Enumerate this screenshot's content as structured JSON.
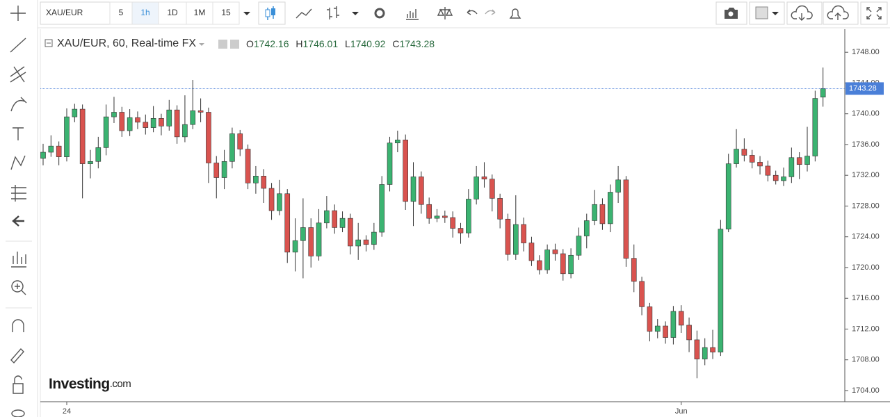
{
  "toolbar": {
    "symbol": "XAU/EUR",
    "intervals": [
      "5",
      "1h",
      "1D",
      "1M",
      "15"
    ],
    "active_interval": 1
  },
  "chart_data": {
    "type": "candlestick",
    "legend_title": "XAU/EUR, 60, Real-time FX",
    "ohlc_labels": [
      "O",
      "H",
      "L",
      "C"
    ],
    "watermark": "Investing",
    "watermark_suffix": ".com",
    "up_color": "#3bb371",
    "down_color": "#d9534f",
    "last_price_color": "#4a7fd8",
    "categories": [
      null,
      null,
      null,
      "24",
      null,
      null,
      null,
      null,
      null,
      null,
      null,
      null,
      null,
      null,
      null,
      null,
      null,
      null,
      null,
      null,
      null,
      null,
      null,
      null,
      null,
      null,
      null,
      null,
      null,
      null,
      null,
      null,
      null,
      null,
      null,
      null,
      null,
      null,
      null,
      null,
      null,
      null,
      null,
      null,
      null,
      null,
      null,
      null,
      null,
      null,
      null,
      null,
      null,
      null,
      null,
      null,
      null,
      null,
      null,
      null,
      null,
      null,
      null,
      null,
      null,
      null,
      null,
      null,
      null,
      null,
      null,
      null,
      null,
      null,
      null,
      null,
      null,
      null,
      null,
      null,
      null,
      "Jun",
      null,
      null,
      null,
      null,
      null,
      null,
      null,
      null,
      null,
      null,
      null,
      null,
      null,
      null,
      null,
      null,
      null,
      null
    ],
    "open": [
      1734.2,
      1735.0,
      1735.8,
      1734.4,
      1739.6,
      1740.6,
      1733.5,
      1733.8,
      1735.6,
      1739.6,
      1740.2,
      1737.8,
      1739.5,
      1738.9,
      1738.2,
      1739.4,
      1738.4,
      1740.5,
      1737.0,
      1738.6,
      1740.4,
      1740.2,
      1733.6,
      1731.7,
      1733.8,
      1737.4,
      1735.4,
      1731.0,
      1731.9,
      1730.3,
      1727.4,
      1729.6,
      1722.0,
      1723.5,
      1725.2,
      1721.5,
      1725.8,
      1727.4,
      1725.2,
      1726.4,
      1722.8,
      1723.6,
      1723.0,
      1724.6,
      1730.8,
      1736.2,
      1736.6,
      1728.6,
      1731.8,
      1728.2,
      1726.4,
      1726.7,
      1726.5,
      1725.1,
      1724.5,
      1728.9,
      1731.8,
      1731.5,
      1729.0,
      1726.3,
      1721.7,
      1725.6,
      1723.2,
      1720.9,
      1719.7,
      1722.3,
      1721.8,
      1719.2,
      1721.6,
      1724.1,
      1726.1,
      1728.2,
      1725.7,
      1729.8,
      1731.4,
      1721.2,
      1718.2,
      1714.9,
      1711.7,
      1712.4,
      1710.9,
      1714.3,
      1712.5,
      1710.6,
      1708.1,
      1709.6,
      1709.0,
      1725.0,
      1733.5,
      1735.4,
      1734.6,
      1733.7,
      1733.2,
      1732.0,
      1731.3,
      1731.8,
      1734.3,
      1733.4,
      1734.5,
      1742.16
    ],
    "high": [
      1736.1,
      1737.2,
      1736.4,
      1740.7,
      1741.3,
      1741.2,
      1735.3,
      1737.0,
      1741.2,
      1742.2,
      1740.9,
      1740.6,
      1740.3,
      1739.9,
      1741.0,
      1740.0,
      1741.8,
      1741.1,
      1742.4,
      1744.4,
      1742.0,
      1740.8,
      1734.5,
      1735.3,
      1738.2,
      1737.9,
      1736.0,
      1733.2,
      1732.8,
      1731.0,
      1731.4,
      1730.2,
      1726.4,
      1729.0,
      1726.4,
      1727.6,
      1729.3,
      1728.2,
      1727.3,
      1727.0,
      1725.8,
      1724.2,
      1725.8,
      1731.9,
      1737.0,
      1737.8,
      1737.3,
      1733.7,
      1732.5,
      1729.1,
      1727.6,
      1727.4,
      1727.3,
      1725.8,
      1730.2,
      1733.2,
      1733.7,
      1732.1,
      1729.6,
      1727.0,
      1729.4,
      1726.5,
      1724.0,
      1721.6,
      1723.0,
      1723.1,
      1722.4,
      1722.5,
      1725.2,
      1727.0,
      1730.1,
      1729.0,
      1730.8,
      1733.2,
      1731.9,
      1723.0,
      1718.8,
      1715.4,
      1713.3,
      1713.0,
      1715.0,
      1715.1,
      1713.5,
      1711.8,
      1710.8,
      1711.9,
      1726.2,
      1734.8,
      1738.0,
      1736.8,
      1735.3,
      1734.5,
      1733.9,
      1732.6,
      1733.0,
      1735.6,
      1735.0,
      1738.3,
      1743.0,
      1746.01
    ],
    "low": [
      1733.3,
      1734.4,
      1733.3,
      1733.8,
      1738.9,
      1729.0,
      1731.6,
      1732.9,
      1734.6,
      1738.8,
      1737.0,
      1737.1,
      1738.0,
      1737.3,
      1737.6,
      1737.2,
      1737.8,
      1736.1,
      1736.3,
      1738.0,
      1738.9,
      1731.0,
      1729.0,
      1730.2,
      1732.9,
      1734.5,
      1730.2,
      1729.6,
      1728.4,
      1726.2,
      1726.8,
      1720.6,
      1719.5,
      1718.6,
      1720.0,
      1720.9,
      1725.1,
      1724.4,
      1724.6,
      1721.7,
      1721.0,
      1722.1,
      1722.3,
      1724.0,
      1729.9,
      1735.0,
      1727.5,
      1725.4,
      1727.0,
      1725.7,
      1725.9,
      1725.8,
      1723.9,
      1723.1,
      1723.9,
      1728.2,
      1730.4,
      1727.3,
      1725.1,
      1720.9,
      1721.0,
      1722.1,
      1720.2,
      1719.1,
      1719.2,
      1720.9,
      1718.3,
      1718.6,
      1721.0,
      1722.5,
      1725.5,
      1724.9,
      1724.6,
      1728.4,
      1720.1,
      1716.8,
      1713.8,
      1710.4,
      1710.8,
      1710.1,
      1710.0,
      1711.5,
      1709.0,
      1705.6,
      1707.3,
      1708.1,
      1708.5,
      1724.6,
      1733.0,
      1733.8,
      1732.9,
      1732.1,
      1731.2,
      1730.8,
      1730.6,
      1731.0,
      1731.5,
      1732.5,
      1733.8,
      1740.92
    ],
    "close": [
      1735.0,
      1735.8,
      1734.4,
      1739.6,
      1740.6,
      1733.5,
      1733.8,
      1735.6,
      1739.6,
      1740.2,
      1737.8,
      1739.5,
      1738.9,
      1738.2,
      1739.4,
      1738.4,
      1740.5,
      1737.0,
      1738.6,
      1740.4,
      1740.2,
      1733.6,
      1731.7,
      1733.8,
      1737.4,
      1735.4,
      1731.0,
      1731.9,
      1730.3,
      1727.4,
      1729.6,
      1722.0,
      1723.5,
      1725.2,
      1721.5,
      1725.8,
      1727.4,
      1725.2,
      1726.4,
      1722.8,
      1723.6,
      1723.0,
      1724.6,
      1730.8,
      1736.2,
      1736.6,
      1728.6,
      1731.8,
      1728.2,
      1726.4,
      1726.7,
      1726.5,
      1725.1,
      1724.5,
      1728.9,
      1731.8,
      1731.5,
      1729.0,
      1726.3,
      1721.7,
      1725.6,
      1723.2,
      1720.9,
      1719.7,
      1722.3,
      1721.8,
      1719.2,
      1721.6,
      1724.1,
      1726.1,
      1728.2,
      1725.7,
      1729.8,
      1731.4,
      1721.2,
      1718.2,
      1714.9,
      1711.7,
      1712.4,
      1710.9,
      1714.3,
      1712.5,
      1710.6,
      1708.1,
      1709.6,
      1709.0,
      1725.0,
      1733.5,
      1735.4,
      1734.6,
      1733.7,
      1733.2,
      1732.0,
      1731.3,
      1731.8,
      1734.3,
      1733.4,
      1734.5,
      1742.0,
      1743.28
    ],
    "ylim": [
      1702.55,
      1751
    ],
    "yticks": [
      {
        "value": 1704,
        "label": "1704.00"
      },
      {
        "value": 1708,
        "label": "1708.00"
      },
      {
        "value": 1712,
        "label": "1712.00"
      },
      {
        "value": 1716,
        "label": "1716.00"
      },
      {
        "value": 1720,
        "label": "1720.00"
      },
      {
        "value": 1724,
        "label": "1724.00"
      },
      {
        "value": 1728,
        "label": "1728.00"
      },
      {
        "value": 1732,
        "label": "1732.00"
      },
      {
        "value": 1736,
        "label": "1736.00"
      },
      {
        "value": 1740,
        "label": "1740.00"
      },
      {
        "value": 1744,
        "label": "1744.00"
      },
      {
        "value": 1748,
        "label": "1748.00"
      }
    ]
  }
}
